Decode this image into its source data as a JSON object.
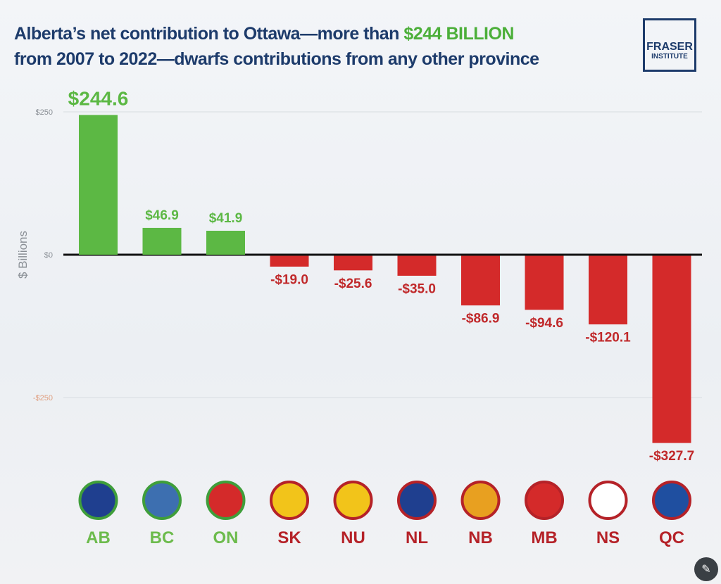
{
  "title": {
    "line1_pre": "Alberta’s net contribution to Ottawa—more than ",
    "line1_highlight": "$244 BILLION",
    "line2": "from 2007 to 2022—dwarfs contributions from any other province"
  },
  "logo": {
    "line1": "FRASER",
    "line2": "INSTITUTE"
  },
  "chart_data": {
    "type": "bar",
    "title": "Alberta’s net contribution to Ottawa—more than $244 BILLION from 2007 to 2022—dwarfs contributions from any other province",
    "xlabel": "",
    "ylabel": "$ Billions",
    "ylim": [
      -327.7,
      250
    ],
    "yticks": [
      {
        "value": 250,
        "label": "$250"
      },
      {
        "value": 0,
        "label": "$0"
      },
      {
        "value": -250,
        "label": "-$250"
      }
    ],
    "categories": [
      "AB",
      "BC",
      "ON",
      "SK",
      "NU",
      "NL",
      "NB",
      "MB",
      "NS",
      "QC"
    ],
    "values": [
      244.6,
      46.9,
      41.9,
      -19.0,
      -25.6,
      -35.0,
      -86.9,
      -94.6,
      -120.1,
      -327.7
    ],
    "labels": [
      "$244.6",
      "$46.9",
      "$41.9",
      "-$19.0",
      "-$25.6",
      "-$35.0",
      "-$86.9",
      "-$94.6",
      "-$120.1",
      "-$327.7"
    ],
    "flag_colors": [
      "#1f3f8f",
      "#3d6fb0",
      "#d42a2a",
      "#f2c41a",
      "#f2c41a",
      "#1f3f8f",
      "#e8a020",
      "#d42a2a",
      "#ffffff",
      "#1f4fa0"
    ],
    "positive_color": "#5cb844",
    "negative_color": "#d42a2a",
    "grid": true
  },
  "fab_icon": "image-edit-icon"
}
